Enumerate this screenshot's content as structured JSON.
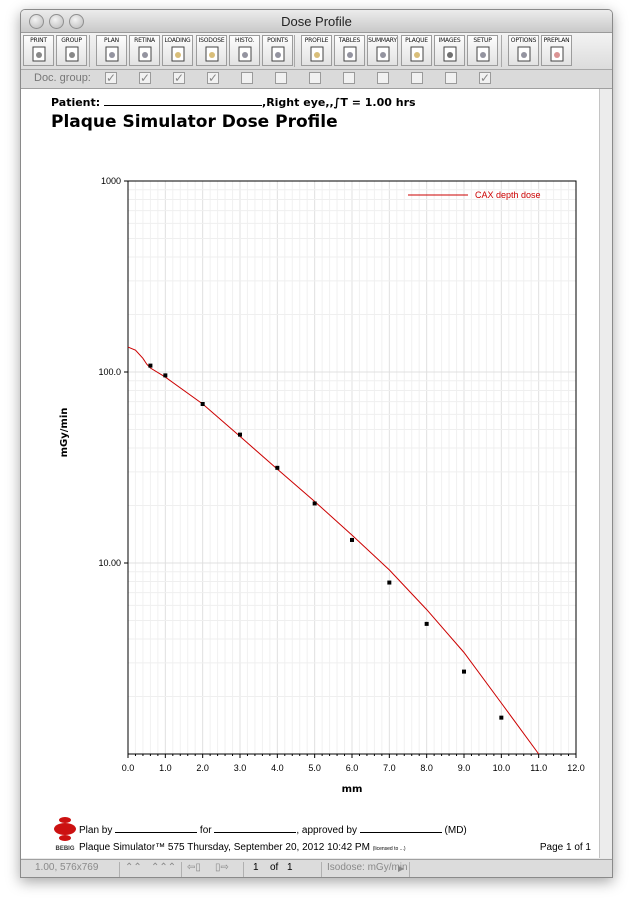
{
  "window": {
    "title": "Dose Profile"
  },
  "toolbar": {
    "buttons": [
      "PRINT",
      "GROUP",
      "PLAN",
      "RETINA",
      "LOADING",
      "ISODOSE",
      "HISTO.",
      "POINTS",
      "PROFILE",
      "TABLES",
      "SUMMARY",
      "PLAQUE",
      "IMAGES",
      "SETUP",
      "OPTIONS",
      "PREPLAN"
    ]
  },
  "docgroup": {
    "label": "Doc. group:",
    "checks": [
      true,
      true,
      true,
      true,
      false,
      false,
      false,
      false,
      false,
      false,
      false,
      true
    ]
  },
  "document": {
    "patient_label": "Patient:",
    "patient_suffix": ",Right eye,,∫T = 1.00 hrs",
    "title": "Plaque Simulator Dose Profile",
    "plan_by": "Plan by",
    "for": "for",
    "approved_by": ", approved by",
    "md": "(MD)",
    "logo_text": "BEBIG",
    "version_line": "Plaque Simulator™ 575 Thursday, September 20, 2012 10:42 PM",
    "license_note": "(licensed to ...)",
    "page_info": "Page 1  of 1"
  },
  "status": {
    "zoom": "1.00, 576x769",
    "page_current": "1",
    "page_of": "of",
    "page_total": "1",
    "isodose": "Isodose: mGy/min"
  },
  "chart_data": {
    "type": "line",
    "xlabel": "mm",
    "ylabel": "mGy/min",
    "xlim": [
      0,
      12
    ],
    "ylim": [
      1,
      1000
    ],
    "yscale": "log",
    "grid": true,
    "legend": "top-right",
    "x_ticks": [
      "0.0",
      "1.0",
      "2.0",
      "3.0",
      "4.0",
      "5.0",
      "6.0",
      "7.0",
      "8.0",
      "9.0",
      "10.0",
      "11.0",
      "12.0"
    ],
    "y_ticks": [
      "1000",
      "100.0",
      "10.00"
    ],
    "series": [
      {
        "name": "CAX depth dose",
        "color": "#cc0000",
        "x": [
          0.0,
          0.2,
          0.4,
          0.5,
          0.6,
          1.0,
          2.0,
          3.0,
          4.0,
          5.0,
          6.0,
          7.0,
          8.0,
          9.0,
          10.0,
          11.0
        ],
        "y": [
          135,
          130,
          118,
          110,
          105,
          94,
          68,
          46,
          31,
          21,
          14,
          9.2,
          5.7,
          3.4,
          1.85,
          1.0
        ]
      },
      {
        "name": "",
        "color": "#000000",
        "marker": "square",
        "x": [
          0.6,
          1.0,
          2.0,
          3.0,
          4.0,
          5.0,
          6.0,
          7.0,
          8.0,
          9.0,
          10.0
        ],
        "y": [
          108,
          96,
          68,
          47,
          31.5,
          20.5,
          13.2,
          7.9,
          4.8,
          2.7,
          1.55
        ]
      }
    ]
  }
}
